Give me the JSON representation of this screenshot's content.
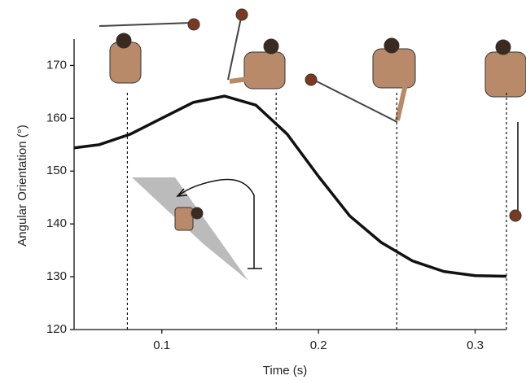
{
  "chart_data": {
    "type": "line",
    "x_label": "Time (s)",
    "y_label": "Angular Orientation (°)",
    "x": [
      0.044,
      0.06,
      0.08,
      0.1,
      0.12,
      0.14,
      0.16,
      0.18,
      0.2,
      0.22,
      0.24,
      0.26,
      0.28,
      0.3,
      0.32
    ],
    "series": [
      {
        "color": "#111111",
        "values": [
          154.4,
          155,
          157,
          160,
          163,
          164.2,
          162.5,
          157,
          149,
          141.5,
          136.5,
          133,
          131,
          130.2,
          130.1
        ]
      }
    ],
    "events": [
      0.078,
      0.173,
      0.25,
      0.32
    ],
    "xlim": [
      0.044,
      0.32
    ],
    "ylim": [
      120,
      175
    ],
    "xticks": [
      0.1,
      0.2,
      0.3
    ],
    "yticks": [
      120,
      130,
      140,
      150,
      160,
      170
    ]
  }
}
